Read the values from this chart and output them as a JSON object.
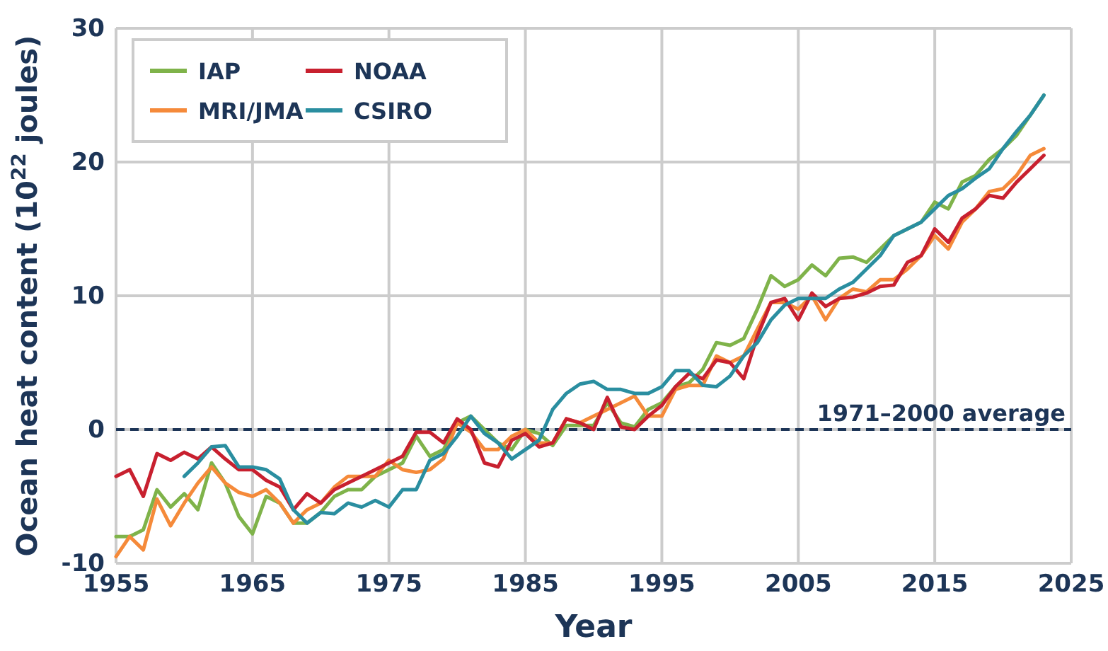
{
  "chart_data": {
    "type": "line",
    "xlabel": "Year",
    "ylabel": "Ocean heat content (10$^{22}$ joules)",
    "xlim": [
      1955,
      2025
    ],
    "xticks": [
      1955,
      1965,
      1975,
      1985,
      1995,
      2005,
      2015,
      2025
    ],
    "ylim": [
      -10,
      30
    ],
    "yticks": [
      -10,
      0,
      10,
      20,
      30
    ],
    "grid": true,
    "legend": "top left",
    "line_style": "solid",
    "marker": "none",
    "ref_lines": [
      {
        "axis": "y",
        "value": 0,
        "label": "1971–2000 average",
        "color": "#1d3557",
        "line_style": "dashed"
      }
    ],
    "series": [
      {
        "name": "IAP",
        "color": "#7fb34a",
        "x": [
          1955,
          1956,
          1957,
          1958,
          1959,
          1960,
          1961,
          1962,
          1963,
          1964,
          1965,
          1966,
          1967,
          1968,
          1969,
          1970,
          1971,
          1972,
          1973,
          1974,
          1975,
          1976,
          1977,
          1978,
          1979,
          1980,
          1981,
          1982,
          1983,
          1984,
          1985,
          1986,
          1987,
          1988,
          1989,
          1990,
          1991,
          1992,
          1993,
          1994,
          1995,
          1996,
          1997,
          1998,
          1999,
          2000,
          2001,
          2002,
          2003,
          2004,
          2005,
          2006,
          2007,
          2008,
          2009,
          2010,
          2011,
          2012,
          2013,
          2014,
          2015,
          2016,
          2017,
          2018,
          2019,
          2020,
          2021,
          2022,
          2023
        ],
        "values": [
          -8,
          -8,
          -7.5,
          -4.5,
          -5.8,
          -4.8,
          -6,
          -2.5,
          -4,
          -6.5,
          -7.8,
          -5,
          -5.5,
          -7,
          -7,
          -6.2,
          -5,
          -4.5,
          -4.5,
          -3.5,
          -3,
          -2.5,
          -0.5,
          -2,
          -1.5,
          0.5,
          1,
          0,
          -1,
          -1.5,
          0,
          -0.3,
          -1.2,
          0.3,
          0.3,
          0.3,
          2,
          0.5,
          0.2,
          1.5,
          2,
          3.2,
          3.5,
          4.5,
          6.5,
          6.3,
          6.8,
          9,
          11.5,
          10.7,
          11.2,
          12.3,
          11.5,
          12.8,
          12.9,
          12.5,
          13.5,
          14.5,
          15,
          15.5,
          17,
          16.5,
          18.5,
          19,
          20.2,
          21,
          22,
          23.5,
          25
        ]
      },
      {
        "name": "MRI/JMA",
        "color": "#f58a3a",
        "x": [
          1955,
          1956,
          1957,
          1958,
          1959,
          1960,
          1961,
          1962,
          1963,
          1964,
          1965,
          1966,
          1967,
          1968,
          1969,
          1970,
          1971,
          1972,
          1973,
          1974,
          1975,
          1976,
          1977,
          1978,
          1979,
          1980,
          1981,
          1982,
          1983,
          1984,
          1985,
          1986,
          1987,
          1988,
          1989,
          1990,
          1991,
          1992,
          1993,
          1994,
          1995,
          1996,
          1997,
          1998,
          1999,
          2000,
          2001,
          2002,
          2003,
          2004,
          2005,
          2006,
          2007,
          2008,
          2009,
          2010,
          2011,
          2012,
          2013,
          2014,
          2015,
          2016,
          2017,
          2018,
          2019,
          2020,
          2021,
          2022,
          2023
        ],
        "values": [
          -9.5,
          -8,
          -9,
          -5.2,
          -7.2,
          -5.5,
          -4,
          -2.8,
          -4,
          -4.7,
          -5,
          -4.5,
          -5.5,
          -7,
          -6,
          -5.5,
          -4.3,
          -3.5,
          -3.5,
          -3.5,
          -2.3,
          -3,
          -3.2,
          -3,
          -2.2,
          0.5,
          -0.2,
          -1.5,
          -1.5,
          -0.5,
          0,
          -1,
          -1,
          0.8,
          0.5,
          1,
          1.5,
          2,
          2.5,
          1,
          1,
          3,
          3.3,
          3.3,
          5.5,
          5,
          5.5,
          7.5,
          9.5,
          9.5,
          9,
          10,
          8.2,
          9.8,
          10.5,
          10.3,
          11.2,
          11.2,
          12,
          13,
          14.5,
          13.5,
          15.5,
          16.5,
          17.8,
          18,
          19,
          20.5,
          21
        ]
      },
      {
        "name": "NOAA",
        "color": "#c8202f",
        "x": [
          1955,
          1956,
          1957,
          1958,
          1959,
          1960,
          1961,
          1962,
          1963,
          1964,
          1965,
          1966,
          1967,
          1968,
          1969,
          1970,
          1971,
          1972,
          1973,
          1974,
          1975,
          1976,
          1977,
          1978,
          1979,
          1980,
          1981,
          1982,
          1983,
          1984,
          1985,
          1986,
          1987,
          1988,
          1989,
          1990,
          1991,
          1992,
          1993,
          1994,
          1995,
          1996,
          1997,
          1998,
          1999,
          2000,
          2001,
          2002,
          2003,
          2004,
          2005,
          2006,
          2007,
          2008,
          2009,
          2010,
          2011,
          2012,
          2013,
          2014,
          2015,
          2016,
          2017,
          2018,
          2019,
          2020,
          2021,
          2022,
          2023
        ],
        "values": [
          -3.5,
          -3,
          -5,
          -1.8,
          -2.3,
          -1.7,
          -2.2,
          -1.3,
          -2.2,
          -3,
          -3,
          -3.8,
          -4.3,
          -6,
          -4.8,
          -5.5,
          -4.5,
          -4,
          -3.5,
          -3,
          -2.5,
          -2,
          -0.2,
          -0.2,
          -1,
          0.8,
          0,
          -2.5,
          -2.8,
          -0.8,
          -0.3,
          -1.3,
          -1,
          0.8,
          0.5,
          0,
          2.4,
          0.2,
          0,
          1,
          1.8,
          3.2,
          4.2,
          3.8,
          5.2,
          5,
          3.8,
          7,
          9.5,
          9.8,
          8.2,
          10.2,
          9.2,
          9.8,
          9.9,
          10.2,
          10.7,
          10.8,
          12.5,
          13,
          15,
          14,
          15.8,
          16.5,
          17.5,
          17.3,
          18.5,
          19.5,
          20.5
        ]
      },
      {
        "name": "CSIRO",
        "color": "#2a8ea0",
        "x": [
          1960,
          1961,
          1962,
          1963,
          1964,
          1965,
          1966,
          1967,
          1968,
          1969,
          1970,
          1971,
          1972,
          1973,
          1974,
          1975,
          1976,
          1977,
          1978,
          1979,
          1980,
          1981,
          1982,
          1983,
          1984,
          1985,
          1986,
          1987,
          1988,
          1989,
          1990,
          1991,
          1992,
          1993,
          1994,
          1995,
          1996,
          1997,
          1998,
          1999,
          2000,
          2001,
          2002,
          2003,
          2004,
          2005,
          2006,
          2007,
          2008,
          2009,
          2010,
          2011,
          2012,
          2013,
          2014,
          2015,
          2016,
          2017,
          2018,
          2019,
          2020,
          2021,
          2022,
          2023
        ],
        "values": [
          -3.5,
          -2.5,
          -1.3,
          -1.2,
          -2.8,
          -2.8,
          -3,
          -3.7,
          -6,
          -7,
          -6.2,
          -6.3,
          -5.5,
          -5.8,
          -5.3,
          -5.8,
          -4.5,
          -4.5,
          -2.3,
          -1.8,
          -0.5,
          1,
          -0.3,
          -1,
          -2.2,
          -1.5,
          -0.8,
          1.5,
          2.7,
          3.4,
          3.6,
          3,
          3,
          2.7,
          2.7,
          3.2,
          4.4,
          4.4,
          3.3,
          3.2,
          4,
          5.5,
          6.5,
          8.2,
          9.3,
          9.8,
          9.8,
          9.8,
          10.5,
          11,
          12,
          13,
          14.5,
          15,
          15.5,
          16.5,
          17.5,
          18,
          18.8,
          19.5,
          21,
          22.3,
          23.5,
          25
        ]
      }
    ]
  }
}
